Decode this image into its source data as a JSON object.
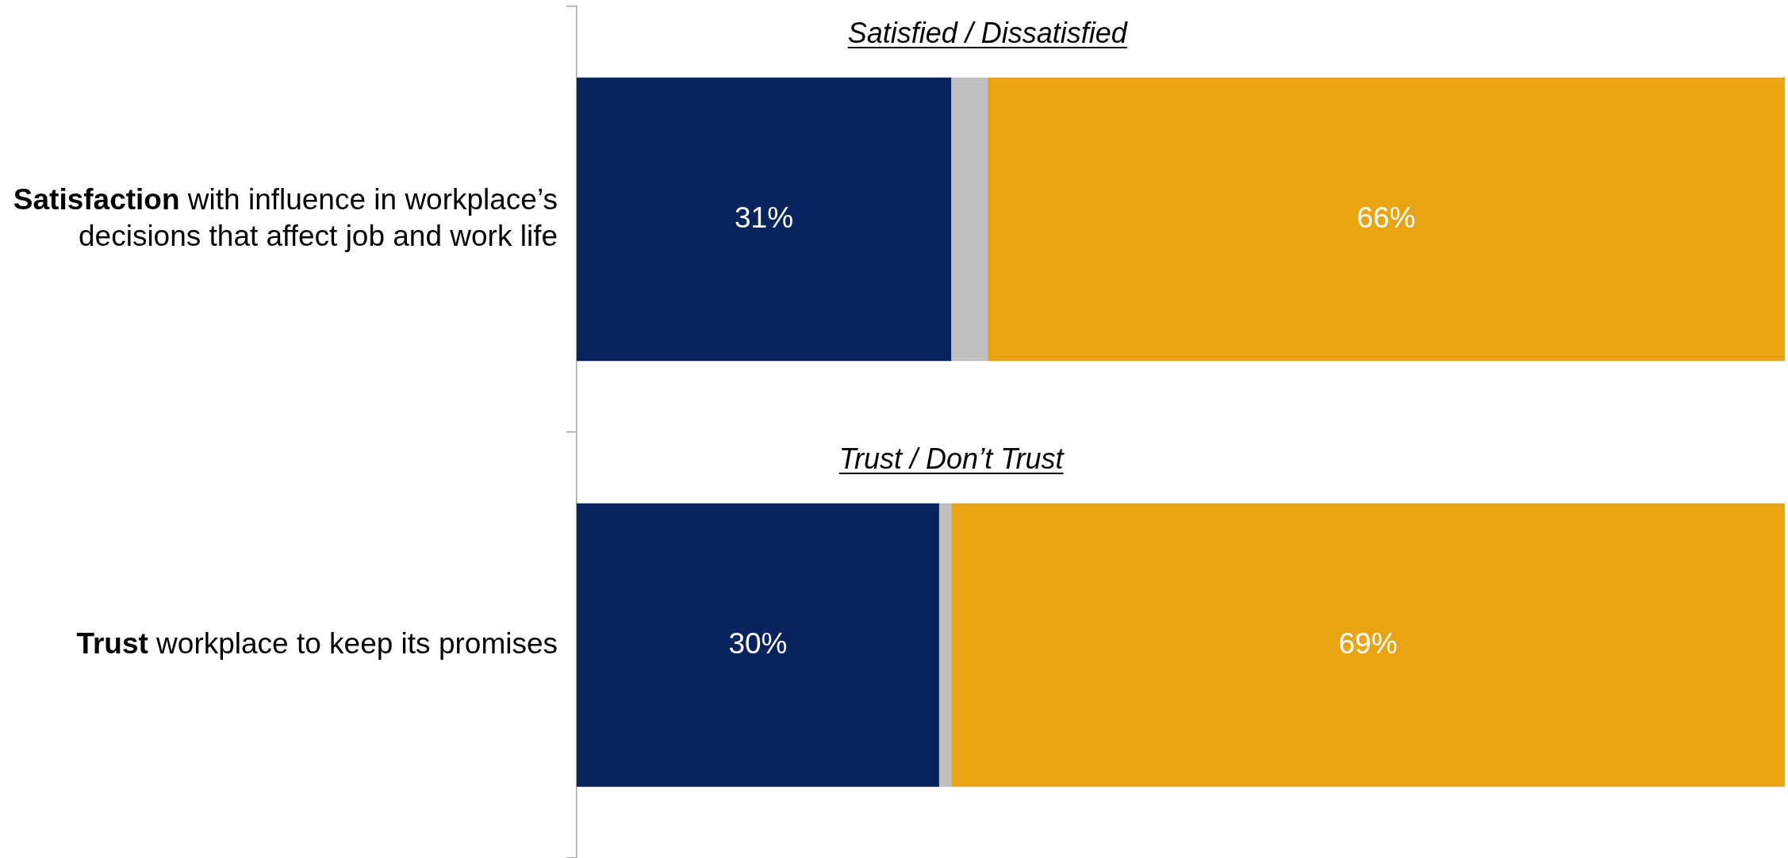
{
  "chart_data": {
    "type": "bar",
    "orientation": "horizontal",
    "stacked": true,
    "categories": [
      "Satisfaction with influence in workplace’s decisions that affect job and work life",
      "Trust workplace to keep its promises"
    ],
    "series": [
      {
        "color": "#08245f",
        "values": [
          31,
          30
        ],
        "value_labels": [
          "31%",
          "30%"
        ]
      },
      {
        "color": "#bfbfbf",
        "values": [
          3,
          1
        ]
      },
      {
        "color": "#e8a413",
        "values": [
          66,
          69
        ],
        "value_labels": [
          "66%",
          "69%"
        ]
      }
    ],
    "xlim": [
      0,
      100
    ],
    "tick_labels": "y",
    "annotations": [
      "Satisfied / Dissatisfied",
      "Trust / Don’t Trust"
    ]
  }
}
